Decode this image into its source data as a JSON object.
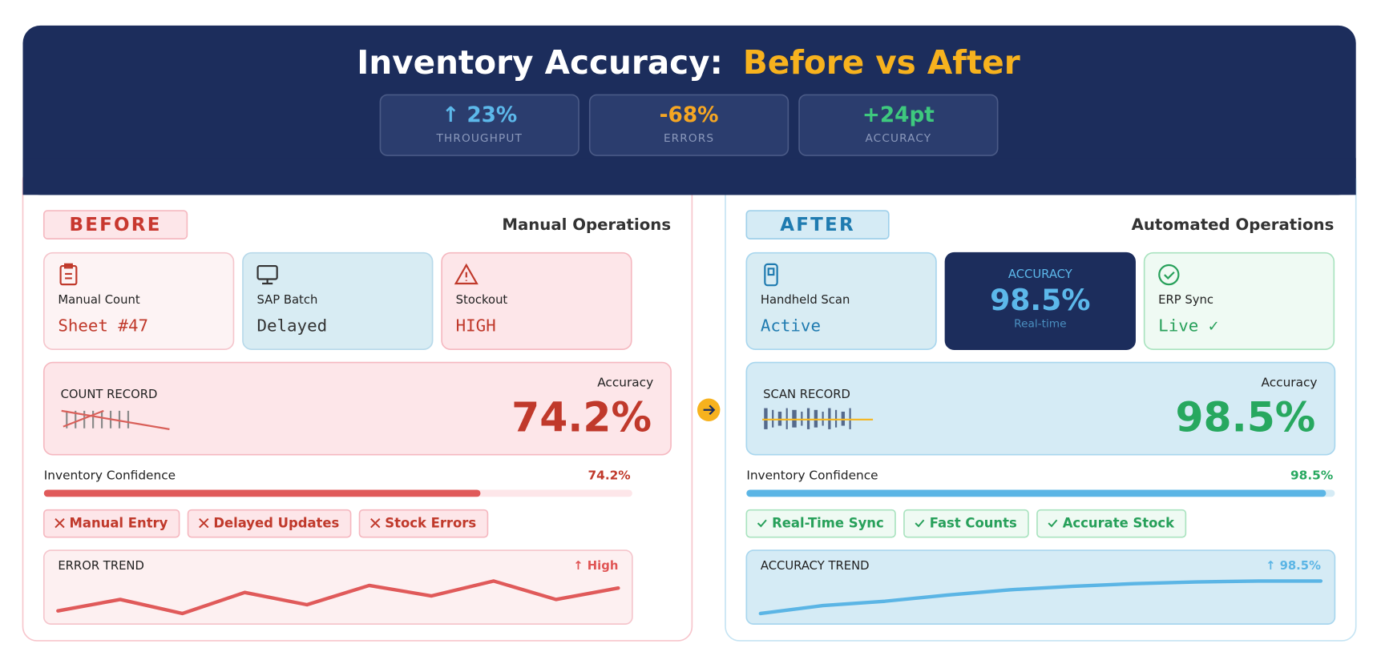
{
  "header": {
    "title": "Inventory Accuracy:",
    "title_highlight": "Before vs After",
    "stats": [
      {
        "value": "↑ 23%",
        "label": "THROUGHPUT"
      },
      {
        "value": "-68%",
        "label": "ERRORS"
      },
      {
        "value": "+24pt",
        "label": "ACCURACY"
      }
    ]
  },
  "before": {
    "badge": "BEFORE",
    "heading": "Manual Operations",
    "cards": [
      {
        "label": "Manual Count",
        "value": "Sheet #47"
      },
      {
        "label": "SAP Batch",
        "value": "Delayed"
      },
      {
        "label": "Stockout",
        "value": "HIGH"
      }
    ],
    "record": {
      "label": "COUNT RECORD",
      "metric_label": "Accuracy",
      "metric": "74.2%"
    },
    "confidence": {
      "label": "Inventory Confidence",
      "value": 74.2,
      "value_label": "74.2%"
    },
    "tags": [
      "Manual Entry",
      "Delayed Updates",
      "Stock Errors"
    ],
    "trend": {
      "label": "ERROR TREND",
      "note": "↑ High",
      "values": [
        1.8,
        4.4,
        1.2,
        6,
        3.2,
        7.6,
        5.2,
        8.6,
        4.4,
        7
      ]
    }
  },
  "after": {
    "badge": "AFTER",
    "heading": "Automated Operations",
    "cards": [
      {
        "label": "Handheld Scan",
        "value": "Active"
      },
      {
        "label": "ACCURACY",
        "value": "98.5%",
        "sub": "Real-time"
      },
      {
        "label": "ERP Sync",
        "value": "Live ✓"
      }
    ],
    "record": {
      "label": "SCAN RECORD",
      "metric_label": "Accuracy",
      "metric": "98.5%"
    },
    "confidence": {
      "label": "Inventory Confidence",
      "value": 98.5,
      "value_label": "98.5%"
    },
    "tags": [
      "Real-Time Sync",
      "Fast Counts",
      "Accurate Stock"
    ],
    "trend": {
      "label": "ACCURACY TREND",
      "note": "↑ 98.5%",
      "values": [
        1.2,
        3,
        4,
        5.4,
        6.6,
        7.4,
        8,
        8.4,
        8.6,
        8.6
      ]
    }
  }
}
